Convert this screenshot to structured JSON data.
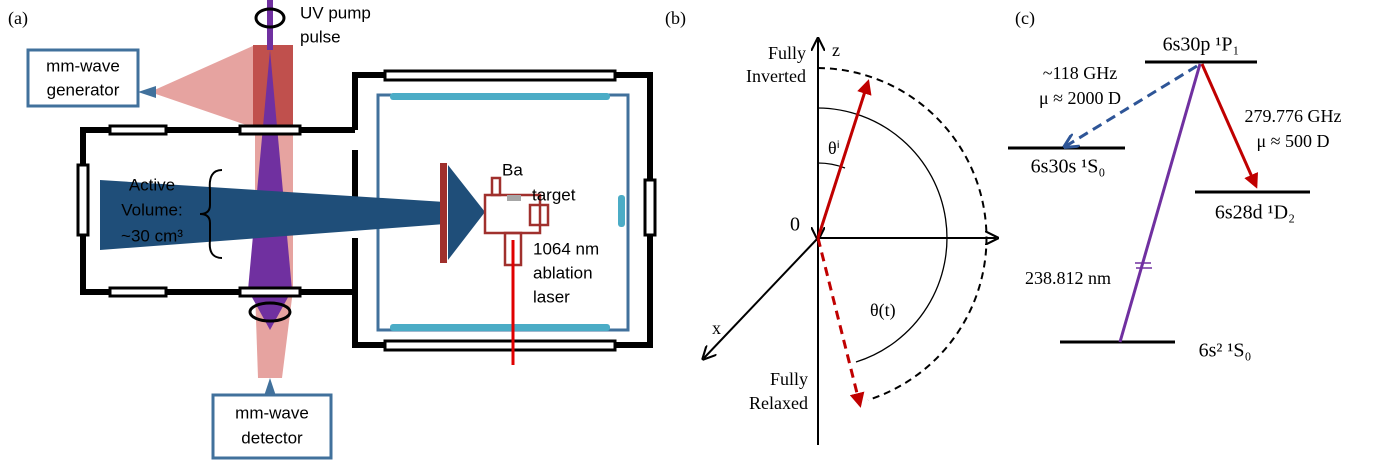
{
  "panel_a": {
    "label": "(a)",
    "uv_pump": [
      "UV pump",
      "pulse"
    ],
    "generator": [
      "mm-wave",
      "generator"
    ],
    "active_volume": [
      "Active",
      "Volume:",
      "~30 cm³"
    ],
    "target": [
      "Ba",
      "target"
    ],
    "laser": [
      "1064 nm",
      "ablation",
      "laser"
    ],
    "detector": [
      "mm-wave",
      "detector"
    ]
  },
  "panel_b": {
    "label": "(b)",
    "z_axis": "z",
    "x_axis": "x",
    "origin": "0",
    "inverted": [
      "Fully",
      "Inverted"
    ],
    "relaxed": [
      "Fully",
      "Relaxed"
    ],
    "theta_i": "θⁱ",
    "theta_t": "θ(t)"
  },
  "panel_c": {
    "label": "(c)",
    "upper_level": "6s30p ¹P₁",
    "left_level": "6s30s ¹S₀",
    "right_level": "6s28d ¹D₂",
    "ground_level": "6s² ¹S₀",
    "left_transition": [
      "~118 GHz",
      "μ ≈ 2000 D"
    ],
    "right_transition": [
      "279.776 GHz",
      "μ ≈ 500 D"
    ],
    "pump_wavelength": "238.812 nm"
  }
}
